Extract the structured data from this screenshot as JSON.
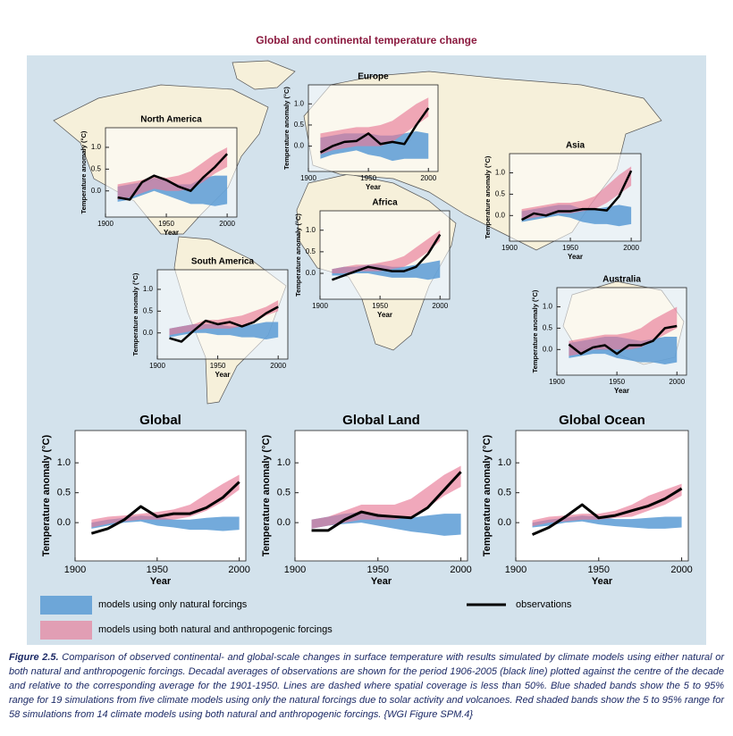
{
  "title": "Global and continental temperature change",
  "legend": [
    {
      "name": "models using only natural forcings",
      "color": "#5b9bd5"
    },
    {
      "name": "models using both natural and anthropogenic forcings",
      "color": "#e87a97"
    },
    {
      "name": "observations",
      "color": "#000000"
    }
  ],
  "chart_data": [
    {
      "type": "line",
      "title": "North America",
      "xlabel": "Year",
      "ylabel": "Temperature anomaly (°C)",
      "xlim": [
        1900,
        2008
      ],
      "xticks": [
        1900,
        1950,
        2000
      ],
      "ylim": [
        -0.6,
        1.45
      ],
      "yticks": [
        {
          "value": 0,
          "label": "0.0"
        },
        {
          "value": 0.5,
          "label": "0.5"
        },
        {
          "value": 1,
          "label": "1.0"
        }
      ],
      "x": [
        1910,
        1920,
        1930,
        1940,
        1950,
        1960,
        1970,
        1980,
        1990,
        2000
      ],
      "series": [
        {
          "legend": 0,
          "lower": [
            -0.25,
            -0.2,
            -0.1,
            0,
            -0.1,
            -0.2,
            -0.3,
            -0.3,
            -0.35,
            -0.3
          ],
          "upper": [
            0.1,
            0.15,
            0.2,
            0.3,
            0.25,
            0.15,
            0.15,
            0.3,
            0.35,
            0.35
          ]
        },
        {
          "legend": 1,
          "lower": [
            -0.2,
            -0.15,
            -0.05,
            0.05,
            0,
            0,
            0.05,
            0.2,
            0.4,
            0.55
          ],
          "upper": [
            0.15,
            0.2,
            0.25,
            0.35,
            0.3,
            0.35,
            0.45,
            0.65,
            0.85,
            1.0
          ]
        },
        {
          "legend": 2,
          "values": [
            -0.15,
            -0.2,
            0.2,
            0.35,
            0.25,
            0.1,
            0,
            0.3,
            0.55,
            0.85
          ]
        }
      ]
    },
    {
      "type": "line",
      "title": "Europe",
      "xlabel": "Year",
      "ylabel": "Temperature anomaly (°C)",
      "xlim": [
        1900,
        2008
      ],
      "xticks": [
        1900,
        1950,
        2000
      ],
      "ylim": [
        -0.6,
        1.45
      ],
      "yticks": [
        {
          "value": 0,
          "label": "0.0"
        },
        {
          "value": 0.5,
          "label": "0.5"
        },
        {
          "value": 1,
          "label": "1.0"
        }
      ],
      "x": [
        1910,
        1920,
        1930,
        1940,
        1950,
        1960,
        1970,
        1980,
        1990,
        2000
      ],
      "series": [
        {
          "legend": 0,
          "lower": [
            -0.3,
            -0.2,
            -0.15,
            -0.1,
            -0.2,
            -0.25,
            -0.35,
            -0.3,
            -0.3,
            -0.3
          ],
          "upper": [
            0.2,
            0.25,
            0.3,
            0.3,
            0.3,
            0.25,
            0.25,
            0.3,
            0.35,
            0.3
          ]
        },
        {
          "legend": 1,
          "lower": [
            -0.2,
            -0.1,
            -0.05,
            0,
            0,
            0,
            0.1,
            0.3,
            0.5,
            0.7
          ],
          "upper": [
            0.3,
            0.35,
            0.4,
            0.45,
            0.45,
            0.5,
            0.6,
            0.8,
            1.0,
            1.15
          ]
        },
        {
          "legend": 2,
          "values": [
            -0.15,
            0,
            0.1,
            0.12,
            0.3,
            0.05,
            0.1,
            0.05,
            0.5,
            0.9
          ]
        }
      ]
    },
    {
      "type": "line",
      "title": "Asia",
      "xlabel": "Year",
      "ylabel": "Temperature anomaly (°C)",
      "xlim": [
        1900,
        2008
      ],
      "xticks": [
        1900,
        1950,
        2000
      ],
      "ylim": [
        -0.6,
        1.45
      ],
      "yticks": [
        {
          "value": 0,
          "label": "0.0"
        },
        {
          "value": 0.5,
          "label": "0.5"
        },
        {
          "value": 1,
          "label": "1.0"
        }
      ],
      "x": [
        1910,
        1920,
        1930,
        1940,
        1950,
        1960,
        1970,
        1980,
        1990,
        2000
      ],
      "series": [
        {
          "legend": 0,
          "lower": [
            -0.15,
            -0.1,
            -0.05,
            0,
            -0.05,
            -0.15,
            -0.2,
            -0.2,
            -0.25,
            -0.2
          ],
          "upper": [
            0.1,
            0.15,
            0.2,
            0.25,
            0.25,
            0.15,
            0.15,
            0.2,
            0.25,
            0.2
          ]
        },
        {
          "legend": 1,
          "lower": [
            -0.1,
            -0.05,
            0,
            0.05,
            0.05,
            0.1,
            0.15,
            0.3,
            0.5,
            0.7
          ],
          "upper": [
            0.15,
            0.2,
            0.25,
            0.3,
            0.3,
            0.35,
            0.45,
            0.7,
            0.95,
            1.15
          ]
        },
        {
          "legend": 2,
          "values": [
            -0.1,
            0.05,
            0,
            0.1,
            0.1,
            0.15,
            0.15,
            0.12,
            0.45,
            1.05
          ]
        }
      ]
    },
    {
      "type": "line",
      "title": "Africa",
      "xlabel": "Year",
      "ylabel": "Temperature anomaly (°C)",
      "xlim": [
        1900,
        2008
      ],
      "xticks": [
        1900,
        1950,
        2000
      ],
      "ylim": [
        -0.6,
        1.45
      ],
      "yticks": [
        {
          "value": 0,
          "label": "0.0"
        },
        {
          "value": 0.5,
          "label": "0.5"
        },
        {
          "value": 1,
          "label": "1.0"
        }
      ],
      "x": [
        1910,
        1920,
        1930,
        1940,
        1950,
        1960,
        1970,
        1980,
        1990,
        2000
      ],
      "series": [
        {
          "legend": 0,
          "lower": [
            -0.05,
            -0.05,
            0,
            0,
            -0.05,
            -0.1,
            -0.1,
            -0.1,
            -0.15,
            -0.1
          ],
          "upper": [
            0.1,
            0.15,
            0.15,
            0.2,
            0.2,
            0.15,
            0.15,
            0.2,
            0.25,
            0.3
          ]
        },
        {
          "legend": 1,
          "lower": [
            0,
            0,
            0.05,
            0.05,
            0.05,
            0.1,
            0.15,
            0.3,
            0.5,
            0.75
          ],
          "upper": [
            0.1,
            0.15,
            0.2,
            0.2,
            0.25,
            0.3,
            0.4,
            0.6,
            0.8,
            1.0
          ]
        },
        {
          "legend": 2,
          "values": [
            -0.15,
            -0.05,
            0.05,
            0.15,
            0.1,
            0.05,
            0.05,
            0.15,
            0.45,
            0.9
          ]
        }
      ]
    },
    {
      "type": "line",
      "title": "South America",
      "xlabel": "Year",
      "ylabel": "Temperature anomaly (°C)",
      "xlim": [
        1900,
        2008
      ],
      "xticks": [
        1900,
        1950,
        2000
      ],
      "ylim": [
        -0.6,
        1.45
      ],
      "yticks": [
        {
          "value": 0,
          "label": "0.0"
        },
        {
          "value": 0.5,
          "label": "0.5"
        },
        {
          "value": 1,
          "label": "1.0"
        }
      ],
      "x": [
        1910,
        1920,
        1930,
        1940,
        1950,
        1960,
        1970,
        1980,
        1990,
        2000
      ],
      "series": [
        {
          "legend": 0,
          "lower": [
            -0.1,
            -0.05,
            0,
            0,
            -0.05,
            -0.05,
            -0.1,
            -0.1,
            -0.15,
            -0.1
          ],
          "upper": [
            0.1,
            0.15,
            0.2,
            0.2,
            0.2,
            0.15,
            0.15,
            0.2,
            0.25,
            0.25
          ]
        },
        {
          "legend": 1,
          "lower": [
            -0.05,
            0,
            0.05,
            0.1,
            0.1,
            0.1,
            0.15,
            0.25,
            0.4,
            0.5
          ],
          "upper": [
            0.1,
            0.15,
            0.2,
            0.3,
            0.3,
            0.35,
            0.4,
            0.5,
            0.6,
            0.75
          ]
        },
        {
          "legend": 2,
          "values": [
            -0.12,
            -0.2,
            0.05,
            0.28,
            0.2,
            0.25,
            0.15,
            0.25,
            0.45,
            0.6
          ]
        }
      ]
    },
    {
      "type": "line",
      "title": "Australia",
      "xlabel": "Year",
      "ylabel": "Temperature anomaly (°C)",
      "xlim": [
        1900,
        2008
      ],
      "xticks": [
        1900,
        1950,
        2000
      ],
      "ylim": [
        -0.6,
        1.45
      ],
      "yticks": [
        {
          "value": 0,
          "label": "0.0"
        },
        {
          "value": 0.5,
          "label": "0.5"
        },
        {
          "value": 1,
          "label": "1.0"
        }
      ],
      "x": [
        1910,
        1920,
        1930,
        1940,
        1950,
        1960,
        1970,
        1980,
        1990,
        2000
      ],
      "series": [
        {
          "legend": 0,
          "lower": [
            -0.2,
            -0.15,
            -0.1,
            -0.1,
            -0.2,
            -0.25,
            -0.3,
            -0.3,
            -0.35,
            -0.3
          ],
          "upper": [
            0.15,
            0.2,
            0.25,
            0.3,
            0.3,
            0.25,
            0.2,
            0.25,
            0.3,
            0.3
          ]
        },
        {
          "legend": 1,
          "lower": [
            -0.15,
            -0.1,
            0,
            0,
            0,
            0,
            0.05,
            0.2,
            0.35,
            0.5
          ],
          "upper": [
            0.2,
            0.25,
            0.3,
            0.35,
            0.35,
            0.4,
            0.5,
            0.7,
            0.85,
            1.0
          ]
        },
        {
          "legend": 2,
          "values": [
            0.12,
            -0.1,
            0.05,
            0.1,
            -0.1,
            0.1,
            0.1,
            0.2,
            0.5,
            0.55
          ]
        }
      ]
    },
    {
      "type": "line",
      "title": "Global",
      "xlabel": "Year",
      "ylabel": "Temperature anomaly (°C)",
      "xlim": [
        1900,
        2004
      ],
      "xticks": [
        1900,
        1950,
        2000
      ],
      "ylim": [
        -0.64,
        1.54
      ],
      "yticks": [
        {
          "value": 0,
          "label": "0.0"
        },
        {
          "value": 0.5,
          "label": "0.5"
        },
        {
          "value": 1,
          "label": "1.0"
        }
      ],
      "x": [
        1910,
        1920,
        1930,
        1940,
        1950,
        1960,
        1970,
        1980,
        1990,
        2000
      ],
      "series": [
        {
          "legend": 0,
          "lower": [
            -0.1,
            -0.05,
            0,
            0.02,
            -0.05,
            -0.08,
            -0.12,
            -0.12,
            -0.14,
            -0.12
          ],
          "upper": [
            0,
            0.05,
            0.08,
            0.12,
            0.1,
            0.05,
            0.05,
            0.08,
            0.1,
            0.1
          ]
        },
        {
          "legend": 1,
          "lower": [
            -0.08,
            -0.02,
            0.02,
            0.05,
            0.05,
            0.05,
            0.1,
            0.2,
            0.35,
            0.55
          ],
          "upper": [
            0.05,
            0.1,
            0.12,
            0.15,
            0.18,
            0.22,
            0.3,
            0.48,
            0.65,
            0.8
          ]
        },
        {
          "legend": 2,
          "values": [
            -0.18,
            -0.1,
            0.05,
            0.27,
            0.1,
            0.15,
            0.15,
            0.25,
            0.42,
            0.68
          ]
        }
      ]
    },
    {
      "type": "line",
      "title": "Global Land",
      "xlabel": "Year",
      "ylabel": "Temperature anomaly (°C)",
      "xlim": [
        1900,
        2004
      ],
      "xticks": [
        1900,
        1950,
        2000
      ],
      "ylim": [
        -0.64,
        1.54
      ],
      "yticks": [
        {
          "value": 0,
          "label": "0.0"
        },
        {
          "value": 0.5,
          "label": "0.5"
        },
        {
          "value": 1,
          "label": "1.0"
        }
      ],
      "x": [
        1910,
        1920,
        1930,
        1940,
        1950,
        1960,
        1970,
        1980,
        1990,
        2000
      ],
      "series": [
        {
          "legend": 0,
          "lower": [
            -0.1,
            -0.05,
            -0.02,
            0,
            -0.05,
            -0.1,
            -0.15,
            -0.18,
            -0.22,
            -0.2
          ],
          "upper": [
            0.05,
            0.1,
            0.15,
            0.18,
            0.15,
            0.1,
            0.08,
            0.12,
            0.15,
            0.15
          ]
        },
        {
          "legend": 1,
          "lower": [
            -0.1,
            -0.05,
            0,
            0.05,
            0.05,
            0.05,
            0.1,
            0.25,
            0.45,
            0.6
          ],
          "upper": [
            0.05,
            0.1,
            0.2,
            0.3,
            0.3,
            0.3,
            0.4,
            0.6,
            0.8,
            0.95
          ]
        },
        {
          "legend": 2,
          "values": [
            -0.13,
            -0.13,
            0.05,
            0.18,
            0.12,
            0.1,
            0.08,
            0.25,
            0.55,
            0.85
          ]
        }
      ]
    },
    {
      "type": "line",
      "title": "Global Ocean",
      "xlabel": "Year",
      "ylabel": "Temperature anomaly (°C)",
      "xlim": [
        1900,
        2004
      ],
      "xticks": [
        1900,
        1950,
        2000
      ],
      "ylim": [
        -0.64,
        1.54
      ],
      "yticks": [
        {
          "value": 0,
          "label": "0.0"
        },
        {
          "value": 0.5,
          "label": "0.5"
        },
        {
          "value": 1,
          "label": "1.0"
        }
      ],
      "x": [
        1910,
        1920,
        1930,
        1940,
        1950,
        1960,
        1970,
        1980,
        1990,
        2000
      ],
      "series": [
        {
          "legend": 0,
          "lower": [
            -0.08,
            -0.05,
            0,
            0.02,
            -0.03,
            -0.06,
            -0.08,
            -0.1,
            -0.1,
            -0.08
          ],
          "upper": [
            0,
            0.05,
            0.08,
            0.12,
            0.1,
            0.06,
            0.06,
            0.08,
            0.1,
            0.1
          ]
        },
        {
          "legend": 1,
          "lower": [
            -0.06,
            0,
            0.02,
            0.05,
            0.05,
            0.08,
            0.1,
            0.2,
            0.3,
            0.45
          ],
          "upper": [
            0.04,
            0.1,
            0.12,
            0.15,
            0.15,
            0.2,
            0.3,
            0.45,
            0.55,
            0.65
          ]
        },
        {
          "legend": 2,
          "values": [
            -0.2,
            -0.08,
            0.1,
            0.3,
            0.08,
            0.12,
            0.2,
            0.28,
            0.4,
            0.57
          ]
        }
      ]
    }
  ],
  "caption": {
    "label": "Figure 2.5.",
    "text": "Comparison of observed continental- and global-scale changes in surface temperature with results simulated by climate models using either natural or both natural and anthropogenic forcings. Decadal averages of observations are shown for the period 1906-2005 (black line) plotted against the centre of the decade and relative to the corresponding average for the 1901-1950. Lines are dashed where spatial coverage is less than 50%. Blue shaded bands show the 5 to 95% range for 19 simulations from five climate models using only the natural forcings due to solar activity and volcanoes. Red shaded bands show the 5 to 95% range for 58 simulations from 14 climate models using both natural and anthropogenic forcings. {WGI Figure SPM.4}"
  }
}
